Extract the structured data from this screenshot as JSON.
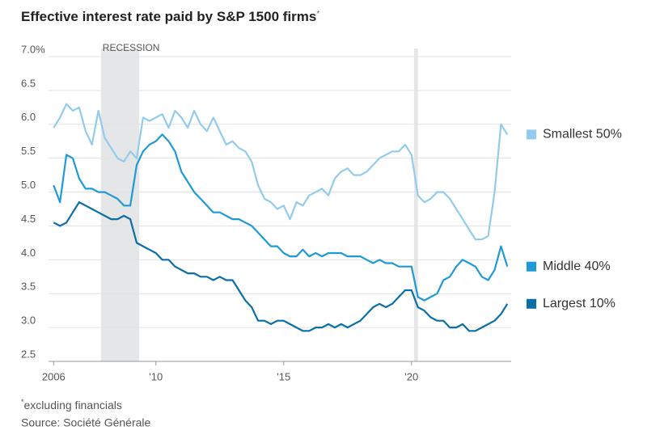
{
  "chart_data": {
    "type": "line",
    "title": "Effective interest rate paid by S&P 1500 firms",
    "title_mark": "*",
    "note_mark": "*",
    "note": "excluding financials",
    "source": "Source: Société Générale",
    "shaded": [
      {
        "label": "RECESSION",
        "x": [
          2007.85,
          2009.35
        ]
      },
      {
        "x": [
          2020.1,
          2020.25
        ]
      }
    ],
    "xlim": [
      2005.8,
      2023.9
    ],
    "xticks": [
      2006,
      {
        "value": 2010,
        "label": "'10"
      },
      {
        "value": 2015,
        "label": "'15"
      },
      {
        "value": 2020,
        "label": "'20"
      }
    ],
    "ylim": [
      2.5,
      7.0
    ],
    "yticks": [
      2.5,
      {
        "value": 3,
        "label": "3.0"
      },
      3.5,
      {
        "value": 4,
        "label": "4.0"
      },
      4.5,
      {
        "value": 5,
        "label": "5.0"
      },
      5.5,
      {
        "value": 6,
        "label": "6.0"
      },
      6.5,
      {
        "value": 7,
        "label": "7.0%"
      }
    ],
    "grid": true,
    "legend": "right",
    "x": [
      2006,
      2006.25,
      2006.5,
      2006.75,
      2007,
      2007.25,
      2007.5,
      2007.75,
      2008,
      2008.25,
      2008.5,
      2008.75,
      2009,
      2009.25,
      2009.5,
      2009.75,
      2010,
      2010.25,
      2010.5,
      2010.75,
      2011,
      2011.25,
      2011.5,
      2011.75,
      2012,
      2012.25,
      2012.5,
      2012.75,
      2013,
      2013.25,
      2013.5,
      2013.75,
      2014,
      2014.25,
      2014.5,
      2014.75,
      2015,
      2015.25,
      2015.5,
      2015.75,
      2016,
      2016.25,
      2016.5,
      2016.75,
      2017,
      2017.25,
      2017.5,
      2017.75,
      2018,
      2018.25,
      2018.5,
      2018.75,
      2019,
      2019.25,
      2019.5,
      2019.75,
      2020,
      2020.25,
      2020.5,
      2020.75,
      2021,
      2021.25,
      2021.5,
      2021.75,
      2022,
      2022.25,
      2022.5,
      2022.75,
      2023,
      2023.25,
      2023.5,
      2023.75
    ],
    "series": [
      {
        "name": "Smallest 50%",
        "color": "#93cbec",
        "values": [
          5.95,
          6.1,
          6.3,
          6.2,
          6.25,
          5.9,
          5.7,
          6.2,
          5.8,
          5.65,
          5.5,
          5.45,
          5.6,
          5.5,
          6.1,
          6.05,
          6.1,
          6.15,
          5.95,
          6.2,
          6.1,
          5.95,
          6.2,
          6.0,
          5.9,
          6.1,
          5.9,
          5.7,
          5.75,
          5.65,
          5.6,
          5.45,
          5.1,
          4.9,
          4.85,
          4.75,
          4.8,
          4.6,
          4.85,
          4.8,
          4.95,
          5.0,
          5.05,
          4.95,
          5.2,
          5.3,
          5.35,
          5.25,
          5.25,
          5.3,
          5.4,
          5.5,
          5.55,
          5.6,
          5.6,
          5.7,
          5.55,
          4.95,
          4.85,
          4.9,
          5.0,
          5.0,
          4.9,
          4.75,
          4.6,
          4.45,
          4.3,
          4.3,
          4.35,
          5.0,
          6.0,
          5.85
        ]
      },
      {
        "name": "Middle 40%",
        "color": "#1e9ad6",
        "values": [
          5.1,
          4.85,
          5.55,
          5.5,
          5.2,
          5.05,
          5.05,
          5.0,
          5.0,
          4.95,
          4.9,
          4.8,
          4.8,
          5.4,
          5.6,
          5.7,
          5.75,
          5.85,
          5.75,
          5.6,
          5.3,
          5.15,
          5.0,
          4.9,
          4.8,
          4.7,
          4.7,
          4.65,
          4.6,
          4.6,
          4.55,
          4.5,
          4.4,
          4.3,
          4.2,
          4.2,
          4.1,
          4.05,
          4.05,
          4.15,
          4.05,
          4.1,
          4.05,
          4.1,
          4.1,
          4.1,
          4.05,
          4.05,
          4.05,
          4.0,
          3.95,
          4.0,
          3.95,
          3.95,
          3.9,
          3.9,
          3.9,
          3.45,
          3.4,
          3.45,
          3.5,
          3.7,
          3.75,
          3.9,
          4.0,
          3.95,
          3.9,
          3.75,
          3.7,
          3.85,
          4.2,
          3.9
        ]
      },
      {
        "name": "Largest 10%",
        "color": "#0b6ea5",
        "values": [
          4.55,
          4.5,
          4.55,
          4.7,
          4.85,
          4.8,
          4.75,
          4.7,
          4.65,
          4.6,
          4.6,
          4.65,
          4.6,
          4.25,
          4.2,
          4.15,
          4.1,
          4.0,
          4.0,
          3.9,
          3.85,
          3.8,
          3.8,
          3.75,
          3.75,
          3.7,
          3.75,
          3.7,
          3.7,
          3.55,
          3.4,
          3.3,
          3.1,
          3.1,
          3.05,
          3.1,
          3.1,
          3.05,
          3.0,
          2.95,
          2.95,
          3.0,
          3.0,
          3.05,
          3.0,
          3.05,
          3.0,
          3.05,
          3.1,
          3.2,
          3.3,
          3.35,
          3.3,
          3.35,
          3.45,
          3.55,
          3.55,
          3.3,
          3.25,
          3.15,
          3.1,
          3.1,
          3.0,
          3.0,
          3.05,
          2.95,
          2.95,
          3.0,
          3.05,
          3.1,
          3.2,
          3.35
        ]
      }
    ]
  }
}
